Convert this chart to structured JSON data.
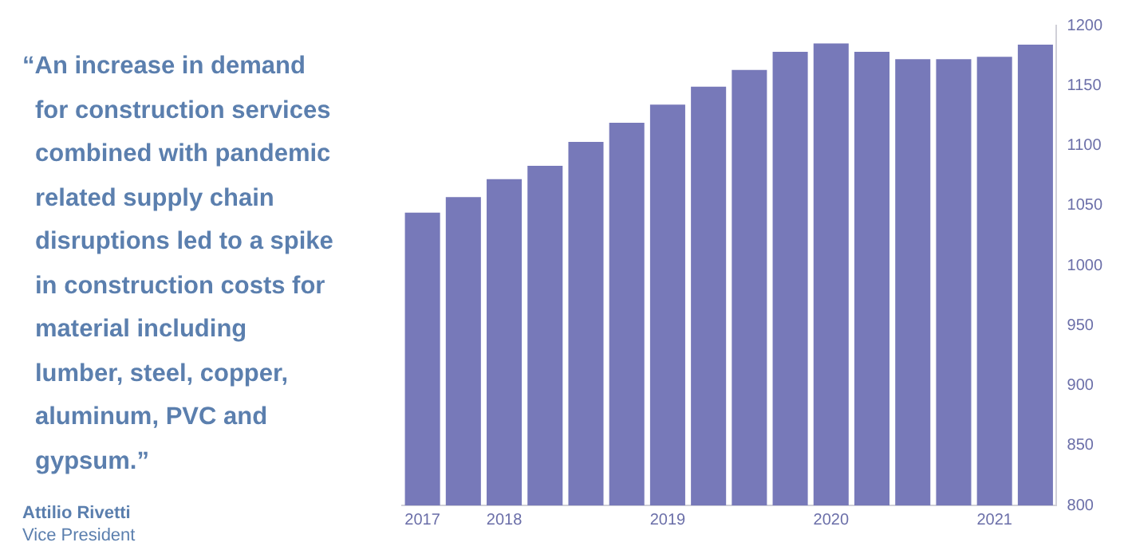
{
  "chart_data": {
    "type": "bar",
    "title": "“An increase in demand for construction services combined with pandemic related supply chain disruptions led to a spike in construction costs for material including lumber, steel, copper, aluminum, PVC and gypsum.”",
    "annotations": [
      "Attilio Rivetti",
      "Vice President"
    ],
    "categories": [
      "2017",
      null,
      "2018",
      null,
      null,
      null,
      "2019",
      null,
      null,
      null,
      "2020",
      null,
      null,
      null,
      "2021",
      null
    ],
    "values": [
      1044,
      1057,
      1072,
      1083,
      1103,
      1119,
      1134,
      1149,
      1163,
      1178,
      1185,
      1178,
      1172,
      1172,
      1174,
      1184
    ],
    "color": "#7779b9",
    "ylim": [
      800,
      1200
    ],
    "yticks": [
      800,
      850,
      900,
      950,
      1000,
      1050,
      1100,
      1150,
      1200
    ],
    "grid": false,
    "legend": false
  }
}
